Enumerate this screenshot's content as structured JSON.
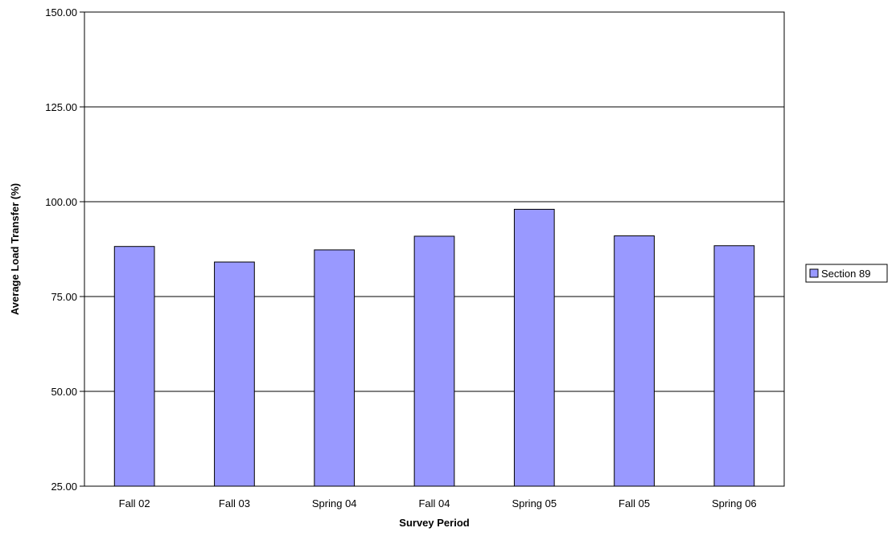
{
  "chart_data": {
    "type": "bar",
    "categories": [
      "Fall 02",
      "Fall 03",
      "Spring 04",
      "Fall 04",
      "Spring 05",
      "Fall 05",
      "Spring 06"
    ],
    "series": [
      {
        "name": "Section 89",
        "values": [
          88.2,
          84.1,
          87.3,
          90.9,
          98.0,
          91.0,
          88.4
        ]
      }
    ],
    "title": "",
    "xlabel": "Survey Period",
    "ylabel": "Average Load Transfer (%)",
    "ylim": [
      25,
      150
    ],
    "yticks": [
      "25.00",
      "50.00",
      "75.00",
      "100.00",
      "125.00",
      "150.00"
    ],
    "grid": true,
    "legend_position": "right",
    "colors": {
      "bar_fill": "#9999ff",
      "bar_stroke": "#000000",
      "grid": "#000000"
    }
  }
}
